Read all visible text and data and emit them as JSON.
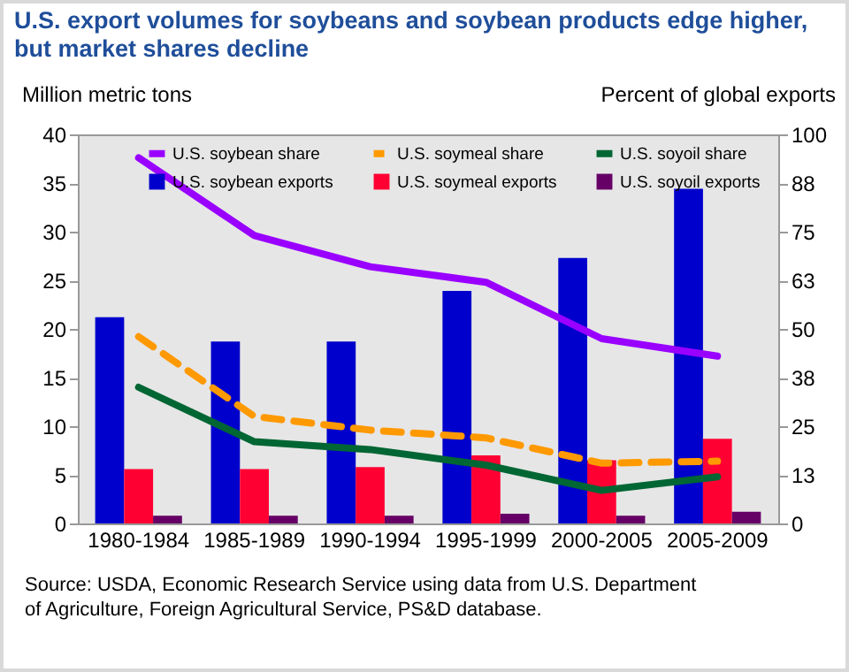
{
  "chart_data": {
    "type": "bar",
    "title": "U.S. export volumes for soybeans and soybean products edge higher, but market shares decline",
    "ylabel": "Million metric tons",
    "y2label": "Percent of global exports",
    "categories": [
      "1980-1984",
      "1985-1989",
      "1990-1994",
      "1995-1999",
      "2000-2005",
      "2005-2009"
    ],
    "series": [
      {
        "name": "U.S. soybean share",
        "type": "line",
        "axis": "y2",
        "color": "#9900ff",
        "line_style": "solid",
        "values": [
          94,
          74,
          66,
          62,
          47.5,
          43
        ]
      },
      {
        "name": "U.S. soymeal share",
        "type": "line",
        "axis": "y2",
        "color": "#ff9900",
        "line_style": "dashed",
        "values": [
          48,
          27.5,
          24,
          22,
          15.5,
          16
        ]
      },
      {
        "name": "U.S. soyoil share",
        "type": "line",
        "axis": "y2",
        "color": "#006633",
        "line_style": "solid",
        "values": [
          35,
          21,
          19,
          15,
          8.5,
          12
        ]
      },
      {
        "name": "U.S. soybean exports",
        "color": "#0000cc",
        "values": [
          21.2,
          18.7,
          18.7,
          23.9,
          27.3,
          34.4
        ]
      },
      {
        "name": "U.S. soymeal exports",
        "color": "#ff0033",
        "values": [
          5.6,
          5.6,
          5.8,
          7,
          6.5,
          8.7
        ]
      },
      {
        "name": "U.S. soyoil exports",
        "color": "#660066",
        "values": [
          0.8,
          0.8,
          0.8,
          1,
          0.8,
          1.2
        ]
      }
    ],
    "ylim": [
      0,
      40
    ],
    "yticks": [
      0,
      5,
      10,
      15,
      20,
      25,
      30,
      35,
      40
    ],
    "y2lim": [
      0,
      100
    ],
    "y2ticks": [
      0,
      {
        "value": 12.5,
        "label": "13"
      },
      25,
      {
        "value": 37.5,
        "label": "38"
      },
      50,
      {
        "value": 62.5,
        "label": "63"
      },
      75,
      {
        "value": 87.5,
        "label": "88"
      },
      100
    ],
    "grid": false,
    "legend": "top",
    "annotations": [
      "Source: USDA, Economic Research Service using data from U.S. Department of Agriculture, Foreign Agricultural Service, PS&D database."
    ]
  }
}
